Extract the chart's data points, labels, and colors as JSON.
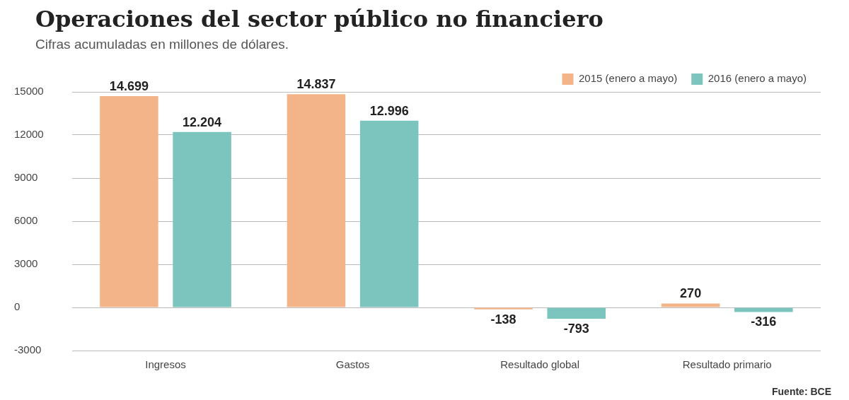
{
  "chart_data": {
    "type": "bar",
    "title": "Operaciones del sector público no financiero",
    "subtitle": "Cifras acumuladas en millones de dólares.",
    "categories": [
      "Ingresos",
      "Gastos",
      "Resultado global",
      "Resultado primario"
    ],
    "series": [
      {
        "name": "2015 (enero a mayo)",
        "color": "#f4b48a",
        "values": [
          14699,
          14837,
          -138,
          270
        ],
        "value_labels": [
          "14.699",
          "14.837",
          "-138",
          "270"
        ]
      },
      {
        "name": "2016 (enero a mayo)",
        "color": "#7cc4be",
        "values": [
          12204,
          12996,
          -793,
          -316
        ],
        "value_labels": [
          "12.204",
          "12.996",
          "-793",
          "-316"
        ]
      }
    ],
    "ylim": [
      -3000,
      15000
    ],
    "yticks": [
      -3000,
      0,
      3000,
      6000,
      9000,
      12000,
      15000
    ],
    "grid": "y",
    "legend": "top right",
    "annotations": [
      "Fuente: BCE"
    ]
  }
}
